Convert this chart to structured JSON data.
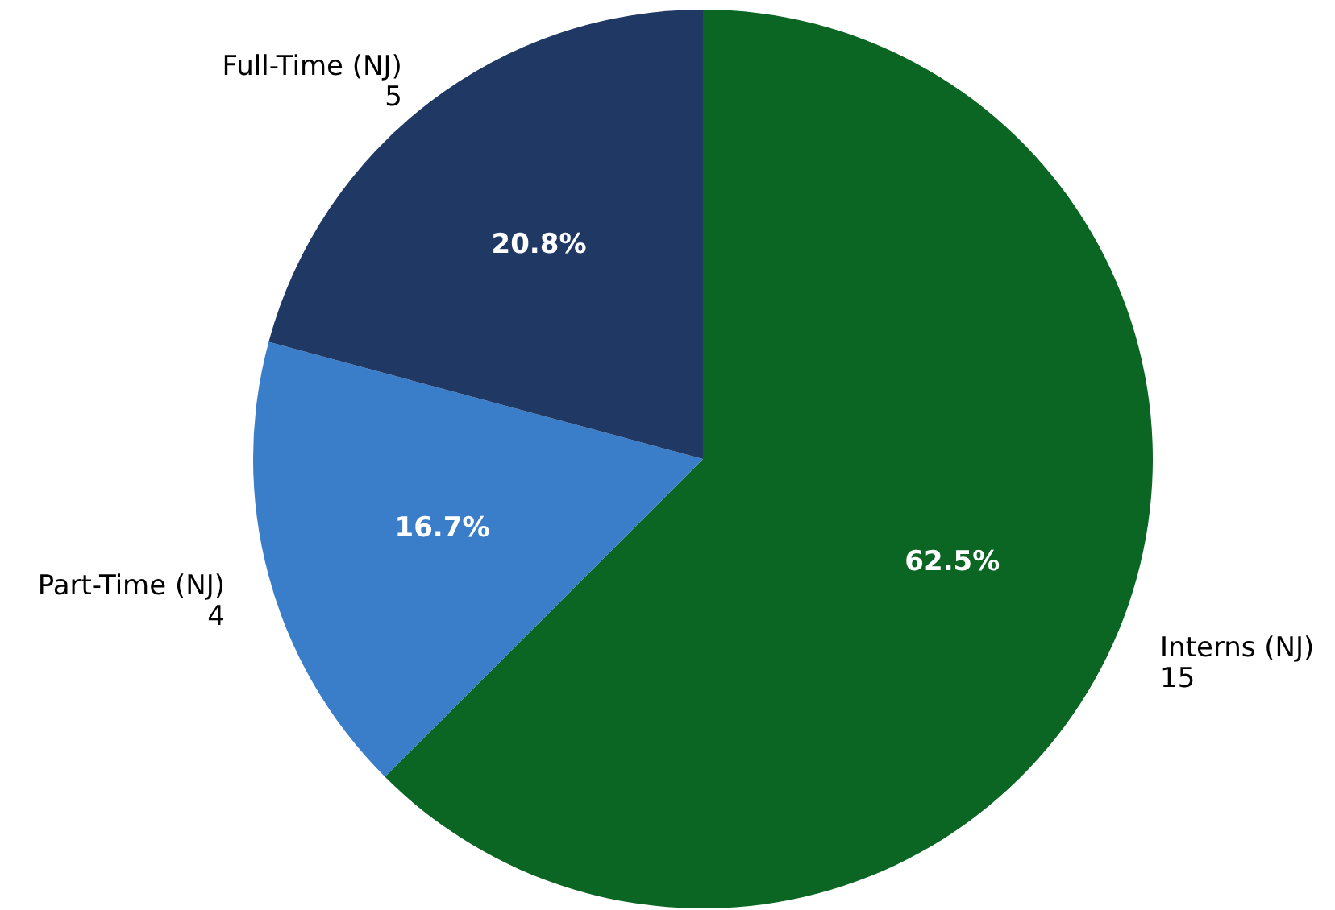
{
  "chart_data": {
    "type": "pie",
    "categories": [
      "Interns (NJ)\n15",
      "Part-Time (NJ)\n4",
      "Full-Time (NJ)\n5"
    ],
    "values": [
      62.5,
      16.7,
      20.8
    ],
    "colors": [
      "#0b6623",
      "#3a7dc9",
      "#1f3864"
    ],
    "value_labels": [
      "62.5%",
      "16.7%",
      "20.8%"
    ]
  }
}
